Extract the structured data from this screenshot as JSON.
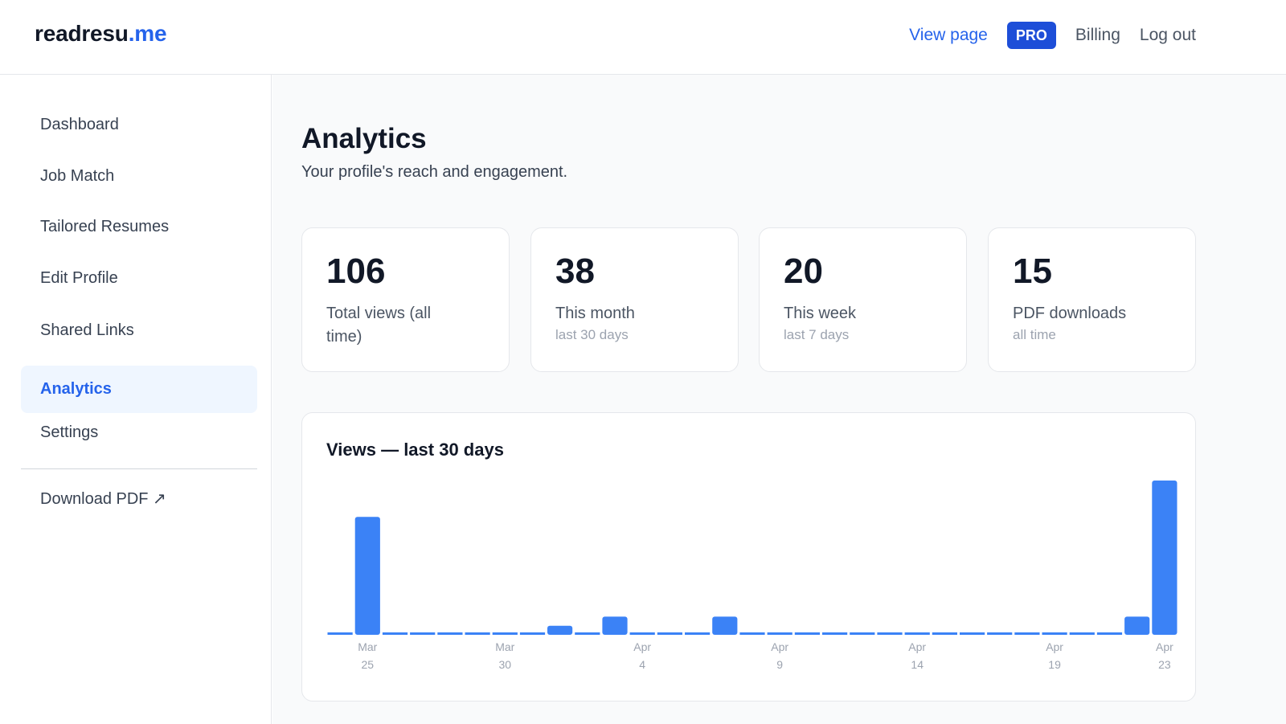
{
  "header": {
    "logo_main": "readresu",
    "logo_accent": ".me",
    "nav": {
      "view_page": "View page",
      "pro_badge": "PRO",
      "billing": "Billing",
      "logout": "Log out"
    }
  },
  "sidebar": {
    "items": [
      {
        "label": "Dashboard"
      },
      {
        "label": "Job Match"
      },
      {
        "label": "Tailored Resumes"
      },
      {
        "label": "Edit Profile"
      },
      {
        "label": "Shared Links"
      },
      {
        "label": "Analytics"
      },
      {
        "label": "Settings"
      }
    ],
    "download": "Download PDF ↗"
  },
  "main": {
    "title": "Analytics",
    "subtitle": "Your profile's reach and engagement.",
    "stats": [
      {
        "value": "106",
        "label": "Total views (all time)",
        "sub": ""
      },
      {
        "value": "38",
        "label": "This month",
        "sub": "last 30 days"
      },
      {
        "value": "20",
        "label": "This week",
        "sub": "last 7 days"
      },
      {
        "value": "15",
        "label": "PDF downloads",
        "sub": "all time"
      }
    ],
    "chart_title": "Views — last 30 days"
  },
  "colors": {
    "accent": "#2563eb",
    "bar": "#3b82f6",
    "pro_badge": "#1d4ed8"
  },
  "chart_data": {
    "type": "bar",
    "title": "Views — last 30 days",
    "categories": [
      "Mar 24",
      "Mar 25",
      "Mar 26",
      "Mar 27",
      "Mar 28",
      "Mar 29",
      "Mar 30",
      "Mar 31",
      "Apr 1",
      "Apr 2",
      "Apr 3",
      "Apr 4",
      "Apr 5",
      "Apr 6",
      "Apr 7",
      "Apr 8",
      "Apr 9",
      "Apr 10",
      "Apr 11",
      "Apr 12",
      "Apr 13",
      "Apr 14",
      "Apr 15",
      "Apr 16",
      "Apr 17",
      "Apr 18",
      "Apr 19",
      "Apr 20",
      "Apr 21",
      "Apr 22",
      "Apr 23"
    ],
    "values": [
      0,
      13,
      0,
      0,
      0,
      0,
      0,
      0,
      1,
      0,
      2,
      0,
      0,
      0,
      2,
      0,
      0,
      0,
      0,
      0,
      0,
      0,
      0,
      0,
      0,
      0,
      0,
      0,
      0,
      2,
      17
    ],
    "tick_labels": [
      {
        "index": 1,
        "line1": "Mar",
        "line2": "25"
      },
      {
        "index": 6,
        "line1": "Mar",
        "line2": "30"
      },
      {
        "index": 11,
        "line1": "Apr",
        "line2": "4"
      },
      {
        "index": 16,
        "line1": "Apr",
        "line2": "9"
      },
      {
        "index": 21,
        "line1": "Apr",
        "line2": "14"
      },
      {
        "index": 26,
        "line1": "Apr",
        "line2": "19"
      },
      {
        "index": 30,
        "line1": "Apr",
        "line2": "23"
      }
    ],
    "ylim": [
      0,
      17
    ],
    "grid": false,
    "legend": "none"
  }
}
